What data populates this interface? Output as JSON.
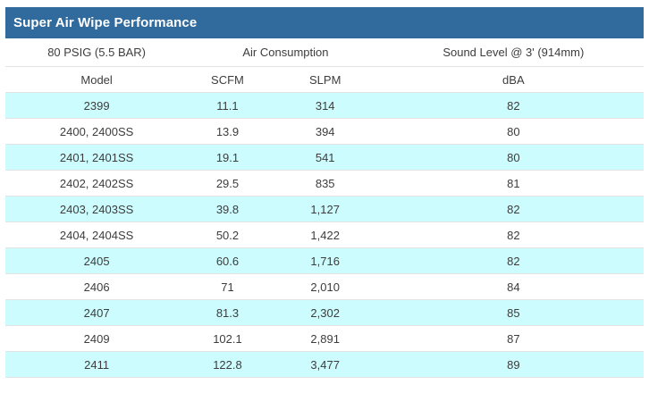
{
  "title_bar": {
    "title": "Super Air Wipe Performance",
    "bg_color": "#316b9e",
    "text_color": "#ffffff"
  },
  "table": {
    "group_headers": {
      "pressure": "80 PSIG (5.5 BAR)",
      "air_consumption": "Air Consumption",
      "sound_level": "Sound Level @ 3' (914mm)"
    },
    "columns": {
      "model": "Model",
      "scfm": "SCFM",
      "slpm": "SLPM",
      "dba": "dBA"
    },
    "rows": [
      {
        "model": "2399",
        "scfm": "11.1",
        "slpm": "314",
        "dba": "82",
        "shaded": true
      },
      {
        "model": "2400, 2400SS",
        "scfm": "13.9",
        "slpm": "394",
        "dba": "80",
        "shaded": false
      },
      {
        "model": "2401, 2401SS",
        "scfm": "19.1",
        "slpm": "541",
        "dba": "80",
        "shaded": true
      },
      {
        "model": "2402, 2402SS",
        "scfm": "29.5",
        "slpm": "835",
        "dba": "81",
        "shaded": false
      },
      {
        "model": "2403, 2403SS",
        "scfm": "39.8",
        "slpm": "1,127",
        "dba": "82",
        "shaded": true
      },
      {
        "model": "2404, 2404SS",
        "scfm": "50.2",
        "slpm": "1,422",
        "dba": "82",
        "shaded": false
      },
      {
        "model": "2405",
        "scfm": "60.6",
        "slpm": "1,716",
        "dba": "82",
        "shaded": true
      },
      {
        "model": "2406",
        "scfm": "71",
        "slpm": "2,010",
        "dba": "84",
        "shaded": false
      },
      {
        "model": "2407",
        "scfm": "81.3",
        "slpm": "2,302",
        "dba": "85",
        "shaded": true
      },
      {
        "model": "2409",
        "scfm": "102.1",
        "slpm": "2,891",
        "dba": "87",
        "shaded": false
      },
      {
        "model": "2411",
        "scfm": "122.8",
        "slpm": "3,477",
        "dba": "89",
        "shaded": true
      }
    ],
    "colors": {
      "shaded_row": "#ccfcfe",
      "plain_row": "#ffffff",
      "border": "#e3e3e3",
      "text": "#3d3d3d"
    }
  }
}
